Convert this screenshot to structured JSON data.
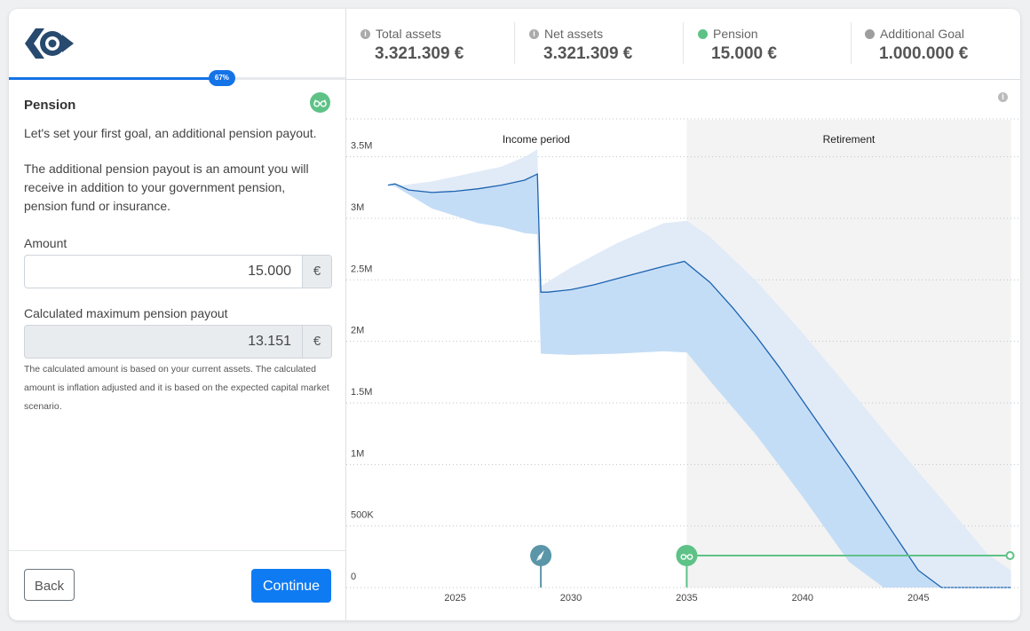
{
  "left_panel": {
    "progress": {
      "label": "67%",
      "percent": 67
    },
    "goal_title": "Pension",
    "intro": "Let's set your first goal, an additional pension payout.",
    "description": "The additional pension payout is an amount you will receive in addition to your government pension, pension fund or insurance.",
    "amount": {
      "label": "Amount",
      "value": "15.000",
      "currency": "€"
    },
    "max_payout": {
      "label": "Calculated maximum pension payout",
      "value": "13.151",
      "currency": "€"
    },
    "note": "The calculated amount is based on your current assets. The calculated amount is inflation adjusted and it is based on the expected capital market scenario.",
    "back_label": "Back",
    "continue_label": "Continue"
  },
  "header": {
    "stats": [
      {
        "label": "Total assets",
        "value": "3.321.309 €",
        "marker": "info"
      },
      {
        "label": "Net assets",
        "value": "3.321.309 €",
        "marker": "info"
      },
      {
        "label": "Pension",
        "value": "15.000 €",
        "marker": "dot",
        "color": "#5ec287"
      },
      {
        "label": "Additional Goal",
        "value": "1.000.000 €",
        "marker": "dot",
        "color": "#9e9e9e"
      }
    ]
  },
  "chart_data": {
    "type": "area",
    "periods": [
      {
        "label": "Income period",
        "from": 2022,
        "to": 2035
      },
      {
        "label": "Retirement",
        "from": 2035,
        "to": 2049
      }
    ],
    "x_ticks": [
      2025,
      2030,
      2035,
      2040,
      2045
    ],
    "y_ticks": [
      {
        "value": 0,
        "label": "0"
      },
      {
        "value": 500000,
        "label": "500K"
      },
      {
        "value": 1000000,
        "label": "1M"
      },
      {
        "value": 1500000,
        "label": "1.5M"
      },
      {
        "value": 2000000,
        "label": "2M"
      },
      {
        "value": 2500000,
        "label": "2.5M"
      },
      {
        "value": 3000000,
        "label": "3M"
      },
      {
        "value": 3500000,
        "label": "3.5M"
      }
    ],
    "xlim": [
      2020.3,
      2049.4
    ],
    "ylim": [
      0,
      3750000
    ],
    "series": [
      {
        "role": "median",
        "x": [
          2022.1,
          2022.4,
          2023,
          2024,
          2025,
          2026,
          2027,
          2028,
          2028.55,
          2028.7,
          2029,
          2030,
          2031,
          2032,
          2033,
          2034,
          2034.9,
          2036,
          2037,
          2038,
          2039,
          2040,
          2041,
          2042,
          2043,
          2044,
          2045,
          2046,
          2047,
          2047.3,
          2048,
          2049
        ],
        "y": [
          3270000,
          3280000,
          3230000,
          3210000,
          3220000,
          3240000,
          3270000,
          3310000,
          3360000,
          2400000,
          2400000,
          2420000,
          2460000,
          2510000,
          2560000,
          2610000,
          2650000,
          2480000,
          2270000,
          2040000,
          1790000,
          1520000,
          1250000,
          980000,
          700000,
          420000,
          140000,
          0,
          0,
          0,
          0,
          0
        ]
      },
      {
        "role": "outer-band",
        "upper": {
          "x": [
            2022.4,
            2024,
            2026,
            2027,
            2028,
            2028.55,
            2028.7,
            2030,
            2032,
            2034,
            2035,
            2036,
            2038,
            2040,
            2042,
            2044,
            2046,
            2048,
            2049
          ],
          "y": [
            3260000,
            3300000,
            3380000,
            3420000,
            3500000,
            3560000,
            2450000,
            2600000,
            2800000,
            2960000,
            2980000,
            2850000,
            2490000,
            2070000,
            1620000,
            1160000,
            720000,
            270000,
            140000
          ]
        },
        "lower": {
          "x": [
            2022.4,
            2024,
            2026,
            2027,
            2028,
            2028.55,
            2028.7,
            2030,
            2032,
            2034,
            2035,
            2036,
            2038,
            2040,
            2042,
            2043.5,
            2044,
            2046,
            2048,
            2049
          ],
          "y": [
            3260000,
            3080000,
            2960000,
            2930000,
            2880000,
            2870000,
            1900000,
            1890000,
            1900000,
            1920000,
            1910000,
            1680000,
            1240000,
            740000,
            210000,
            0,
            0,
            0,
            0,
            0
          ]
        }
      }
    ],
    "markers": [
      {
        "year": 2028.7,
        "icon": "rocket-icon",
        "color": "#5a96a8"
      },
      {
        "year": 2035,
        "icon": "glasses-icon",
        "color": "#5ec287"
      }
    ],
    "pension_goal": {
      "from": 2035,
      "to": 2049,
      "value": 275000,
      "color": "#5ec287"
    }
  }
}
